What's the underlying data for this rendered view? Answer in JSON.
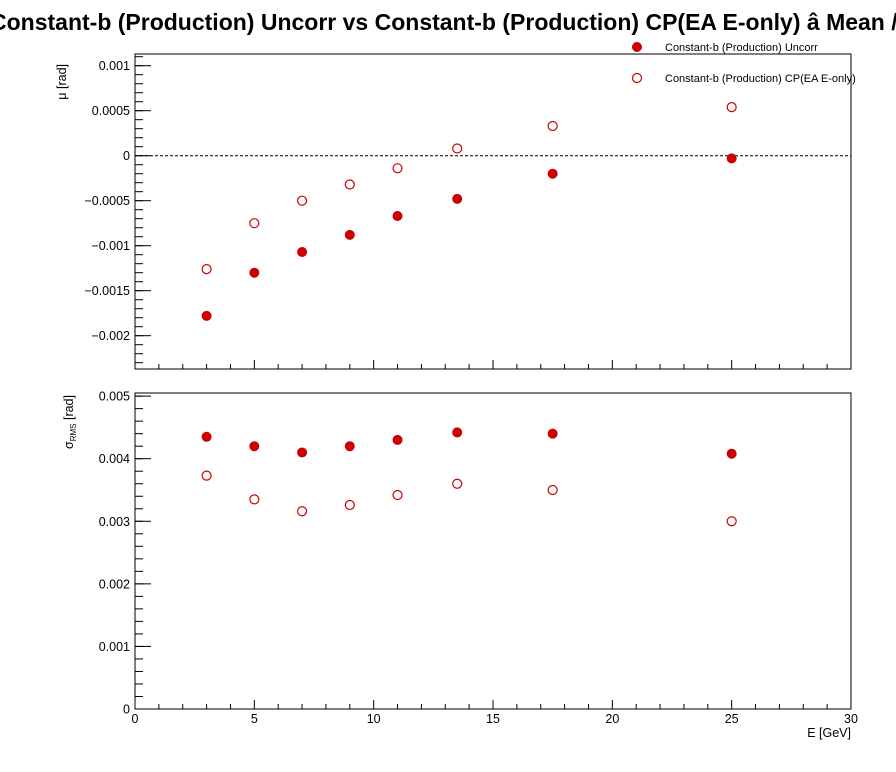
{
  "chart_data": {
    "title": "Constant-b (Production) Uncorr vs Constant-b (Production) CP(EA E-only)  â  Mean / RMS",
    "xlabel": "E  [GeV]",
    "xlim": [
      0,
      30
    ],
    "x_ticks": [
      "0",
      "5",
      "10",
      "15",
      "20",
      "25",
      "30"
    ],
    "x": [
      3,
      5,
      7,
      9,
      11,
      13.5,
      17.5,
      25
    ],
    "legend": {
      "placement": "top-right",
      "entries": [
        "Constant-b (Production) Uncorr",
        "Constant-b (Production) CP(EA E-only)"
      ]
    },
    "series_style": [
      {
        "marker": "filled-circle",
        "color": "#cc0000"
      },
      {
        "marker": "open-circle",
        "color": "#cc0000"
      }
    ],
    "panels": [
      {
        "type": "scatter",
        "ylabel": "μ  [rad]",
        "ylim": [
          -0.00237,
          0.00113
        ],
        "y_ticks": [
          {
            "value": 0.001,
            "label": "0.001"
          },
          {
            "value": 0.0005,
            "label": "0.0005"
          },
          {
            "value": 0,
            "label": "0"
          },
          {
            "value": -0.0005,
            "label": "−0.0005"
          },
          {
            "value": -0.001,
            "label": "−0.001"
          },
          {
            "value": -0.0015,
            "label": "−0.0015"
          },
          {
            "value": -0.002,
            "label": "−0.002"
          }
        ],
        "reference_line": 0,
        "series": [
          {
            "name": "Constant-b (Production) Uncorr",
            "values": [
              -0.00178,
              -0.0013,
              -0.00107,
              -0.00088,
              -0.00067,
              -0.00048,
              -0.0002,
              -3e-05
            ]
          },
          {
            "name": "Constant-b (Production) CP(EA E-only)",
            "values": [
              -0.00126,
              -0.00075,
              -0.0005,
              -0.00032,
              -0.00014,
              8e-05,
              0.00033,
              0.00054
            ]
          }
        ]
      },
      {
        "type": "scatter",
        "ylabel_main": "σ",
        "ylabel_sub": "RMS",
        "ylabel_unit": "[rad]",
        "ylim": [
          0,
          0.00505
        ],
        "y_ticks": [
          {
            "value": 0.005,
            "label": "0.005"
          },
          {
            "value": 0.004,
            "label": "0.004"
          },
          {
            "value": 0.003,
            "label": "0.003"
          },
          {
            "value": 0.002,
            "label": "0.002"
          },
          {
            "value": 0.001,
            "label": "0.001"
          },
          {
            "value": 0,
            "label": "0"
          }
        ],
        "series": [
          {
            "name": "Constant-b (Production) Uncorr",
            "values": [
              0.00435,
              0.0042,
              0.0041,
              0.0042,
              0.0043,
              0.00442,
              0.0044,
              0.00408
            ]
          },
          {
            "name": "Constant-b (Production) CP(EA E-only)",
            "values": [
              0.00373,
              0.00335,
              0.00316,
              0.00326,
              0.00342,
              0.0036,
              0.0035,
              0.003
            ]
          }
        ]
      }
    ]
  }
}
